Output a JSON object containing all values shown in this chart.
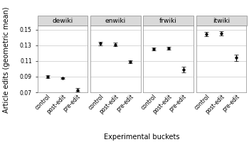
{
  "wikis": [
    "dewiki",
    "enwiki",
    "frwiki",
    "itwiki"
  ],
  "buckets": [
    "control",
    "post-edit",
    "pre-edit"
  ],
  "values": {
    "dewiki": [
      0.09,
      0.088,
      0.073
    ],
    "enwiki": [
      0.132,
      0.131,
      0.109
    ],
    "frwiki": [
      0.125,
      0.126,
      0.099
    ],
    "itwiki": [
      0.144,
      0.145,
      0.114
    ]
  },
  "errors": {
    "dewiki": [
      0.002,
      0.001,
      0.002
    ],
    "enwiki": [
      0.002,
      0.002,
      0.002
    ],
    "frwiki": [
      0.002,
      0.002,
      0.004
    ],
    "itwiki": [
      0.003,
      0.003,
      0.004
    ]
  },
  "xlabel": "Experimental buckets",
  "ylabel": "Article edits (geometric mean)",
  "ylim": [
    0.07,
    0.155
  ],
  "yticks": [
    0.07,
    0.09,
    0.11,
    0.13,
    0.15
  ],
  "panel_bg": "#d9d9d9",
  "plot_bg": "#ffffff",
  "fig_bg": "#ffffff",
  "grid_color": "#c8c8c8",
  "point_color": "#000000",
  "title_fontsize": 6.5,
  "label_fontsize": 7,
  "tick_fontsize": 5.5
}
